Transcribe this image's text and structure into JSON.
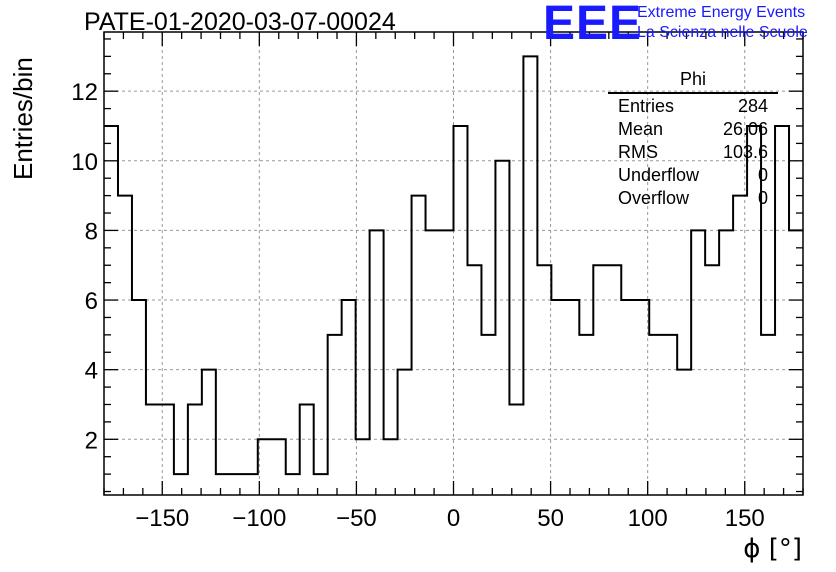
{
  "header": {
    "title": "PATE-01-2020-03-07-00024",
    "logo": "EEE",
    "logo_line1": "Extreme Energy Events",
    "logo_line2": "La Scienza nelle Scuole"
  },
  "stats": {
    "name": "Phi",
    "rows": [
      {
        "label": "Entries",
        "value": "284"
      },
      {
        "label": "Mean",
        "value": "26.06"
      },
      {
        "label": "RMS",
        "value": "103.6"
      },
      {
        "label": "Underflow",
        "value": "0"
      },
      {
        "label": "Overflow",
        "value": "0"
      }
    ]
  },
  "chart_data": {
    "type": "bar",
    "style": "step histogram",
    "title": "PATE-01-2020-03-07-00024",
    "xlabel": "ϕ [°]",
    "ylabel": "Entries/bin",
    "xlim": [
      -180,
      180
    ],
    "ylim": [
      0.4,
      13.7
    ],
    "bin_width": 7.2,
    "x_ticks": [
      -150,
      -100,
      -50,
      0,
      50,
      100,
      150
    ],
    "x_tick_labels": [
      "−150",
      "−100",
      "−50",
      "0",
      "50",
      "100",
      "150"
    ],
    "y_ticks": [
      2,
      4,
      6,
      8,
      10,
      12
    ],
    "grid": true,
    "bin_edges_start": -180,
    "values": [
      11,
      9,
      6,
      3,
      3,
      1,
      3,
      4,
      1,
      1,
      1,
      2,
      2,
      1,
      3,
      1,
      5,
      6,
      2,
      8,
      2,
      4,
      9,
      8,
      8,
      11,
      7,
      5,
      10,
      3,
      13,
      7,
      6,
      6,
      5,
      7,
      7,
      6,
      6,
      5,
      5,
      4,
      8,
      7,
      8,
      9,
      11,
      5,
      11,
      8
    ],
    "colors": {
      "line": "#000000",
      "grid": "#999999",
      "logo": "#1a1aff"
    }
  }
}
